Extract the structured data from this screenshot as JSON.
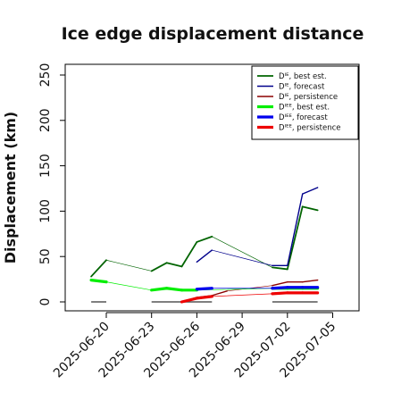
{
  "chart_data": {
    "type": "line",
    "title": "Ice edge displacement distance",
    "xlabel": "",
    "ylabel": "Displacement (km)",
    "xlim": [
      "2025-06-18",
      "2025-07-07"
    ],
    "ylim": [
      0,
      260
    ],
    "yticks": [
      0,
      50,
      100,
      150,
      200,
      250
    ],
    "xticks": [
      "2025-06-20",
      "2025-06-23",
      "2025-06-26",
      "2025-06-29",
      "2025-07-02",
      "2025-07-05"
    ],
    "highlight_tick": "2025-06-26",
    "highlight_color": "#228b22",
    "legend_position": "top-right",
    "series": [
      {
        "name": "Dᴵᴱ, best est.",
        "color": "#006400",
        "values": [
          [
            "2025-06-19",
            28
          ],
          [
            "2025-06-20",
            46
          ],
          [
            "2025-06-23",
            34
          ],
          [
            "2025-06-24",
            43
          ],
          [
            "2025-06-25",
            39
          ],
          [
            "2025-06-26",
            66
          ],
          [
            "2025-06-27",
            72
          ],
          [
            "2025-07-01",
            38
          ],
          [
            "2025-07-02",
            36
          ],
          [
            "2025-07-03",
            105
          ],
          [
            "2025-07-04",
            101
          ]
        ]
      },
      {
        "name": "Dᴵᴱ, forecast",
        "color": "#00008b",
        "values": [
          [
            "2025-06-26",
            44
          ],
          [
            "2025-06-27",
            57
          ],
          [
            "2025-07-01",
            40
          ],
          [
            "2025-07-02",
            40
          ],
          [
            "2025-07-03",
            119
          ],
          [
            "2025-07-04",
            126
          ]
        ]
      },
      {
        "name": "Dᴵᴱ, persistence",
        "color": "#8b0000",
        "values": [
          [
            "2025-06-25",
            0
          ],
          [
            "2025-06-26",
            5
          ],
          [
            "2025-06-27",
            7
          ],
          [
            "2025-06-28",
            12
          ],
          [
            "2025-07-01",
            18
          ],
          [
            "2025-07-02",
            22
          ],
          [
            "2025-07-03",
            22
          ],
          [
            "2025-07-04",
            24
          ]
        ]
      },
      {
        "name": "Dᴵᴱᴱ, best est.",
        "color": "#00ee00",
        "values": [
          [
            "2025-06-19",
            24
          ],
          [
            "2025-06-20",
            22
          ],
          [
            "2025-06-23",
            13
          ],
          [
            "2025-06-24",
            15
          ],
          [
            "2025-06-25",
            13
          ],
          [
            "2025-06-26",
            13
          ],
          [
            "2025-07-01",
            15
          ],
          [
            "2025-07-02",
            15
          ],
          [
            "2025-07-03",
            15
          ],
          [
            "2025-07-04",
            15
          ]
        ]
      },
      {
        "name": "Dᴵᴱᴱ, forecast",
        "color": "#0000ee",
        "values": [
          [
            "2025-06-26",
            14
          ],
          [
            "2025-06-27",
            15
          ],
          [
            "2025-07-01",
            15
          ],
          [
            "2025-07-02",
            16
          ],
          [
            "2025-07-03",
            16
          ],
          [
            "2025-07-04",
            16
          ]
        ]
      },
      {
        "name": "Dᴵᴱᴱ, persistence",
        "color": "#ee0000",
        "values": [
          [
            "2025-06-25",
            0
          ],
          [
            "2025-06-26",
            4
          ],
          [
            "2025-06-27",
            6
          ],
          [
            "2025-07-01",
            9
          ],
          [
            "2025-07-02",
            10
          ],
          [
            "2025-07-03",
            10
          ],
          [
            "2025-07-04",
            10
          ]
        ]
      }
    ],
    "baseline_segments": [
      [
        "2025-06-19",
        "2025-06-20"
      ],
      [
        "2025-06-23",
        "2025-06-27"
      ],
      [
        "2025-07-01",
        "2025-07-04"
      ]
    ]
  }
}
